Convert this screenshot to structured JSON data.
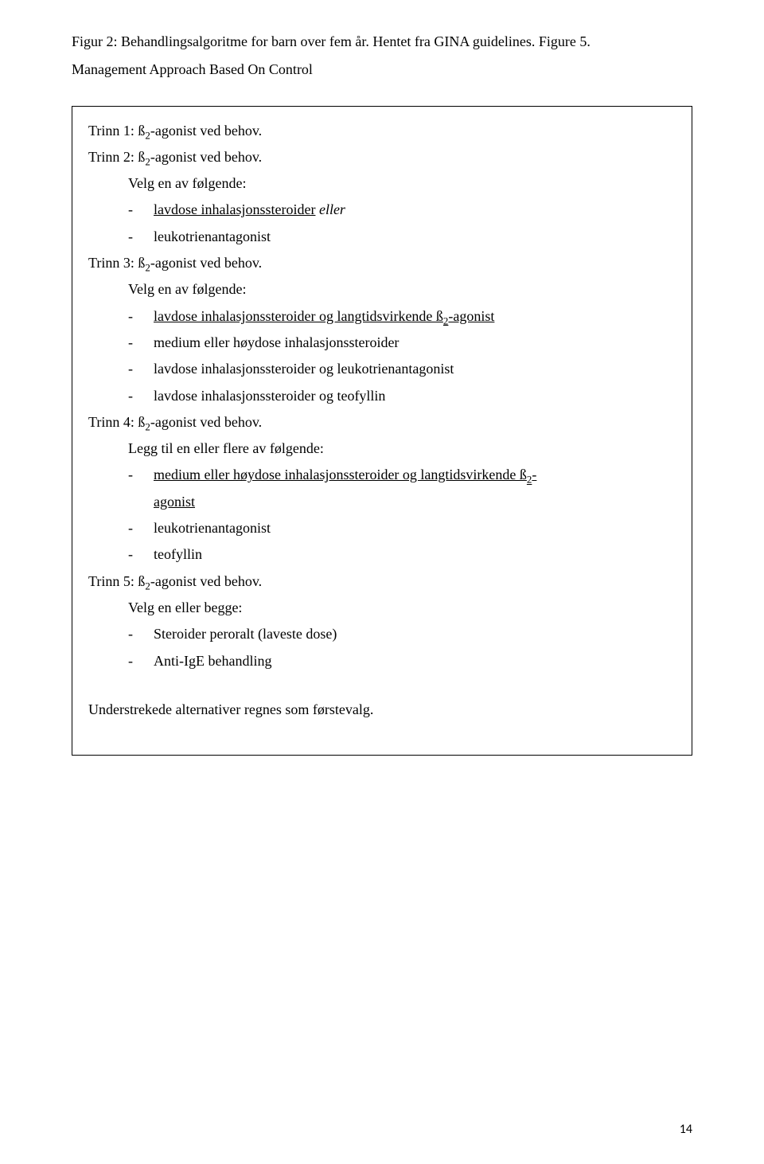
{
  "header": {
    "line1a": "Figur 2: Behandlingsalgoritme for barn over fem år. Hentet fra GINA guidelines. Figure 5.",
    "line2": "Management Approach Based On Control"
  },
  "box": {
    "trinn1": {
      "title_pre": "Trinn 1: ß",
      "title_post": "-agonist ved behov."
    },
    "trinn2": {
      "title_pre": "Trinn 2: ß",
      "title_post": "-agonist ved behov.",
      "choose": "Velg en av følgende:",
      "items": [
        {
          "underlined": "lavdose inhalasjonssteroider",
          "italic_after": " eller"
        },
        {
          "plain": "leukotrienantagonist"
        }
      ]
    },
    "trinn3": {
      "title_pre": "Trinn 3: ß",
      "title_post": "-agonist ved behov.",
      "choose": "Velg en av følgende:",
      "items": [
        {
          "u_pre": "lavdose inhalasjonssteroider og langtidsvirkende ß",
          "u_post": "-agonist"
        },
        {
          "plain": "medium eller høydose inhalasjonssteroider"
        },
        {
          "plain": "lavdose inhalasjonssteroider og leukotrienantagonist"
        },
        {
          "plain": "lavdose inhalasjonssteroider og teofyllin"
        }
      ]
    },
    "trinn4": {
      "title_pre": "Trinn 4: ß",
      "title_post": "-agonist ved behov.",
      "choose": "Legg til en eller flere av følgende:",
      "items_line1_pre": "medium eller høydose inhalasjonssteroider og langtidsvirkende ß",
      "items_line1_post": "-",
      "items_line2": "agonist",
      "items": [
        {
          "plain": "leukotrienantagonist"
        },
        {
          "plain": "teofyllin"
        }
      ]
    },
    "trinn5": {
      "title_pre": "Trinn 5: ß",
      "title_post": "-agonist ved behov.",
      "choose": "Velg en eller begge:",
      "items": [
        {
          "plain": "Steroider peroralt (laveste dose)"
        },
        {
          "plain": "Anti-IgE behandling"
        }
      ]
    },
    "footer_note": "Understrekede alternativer regnes som førstevalg."
  },
  "page_number": "14"
}
